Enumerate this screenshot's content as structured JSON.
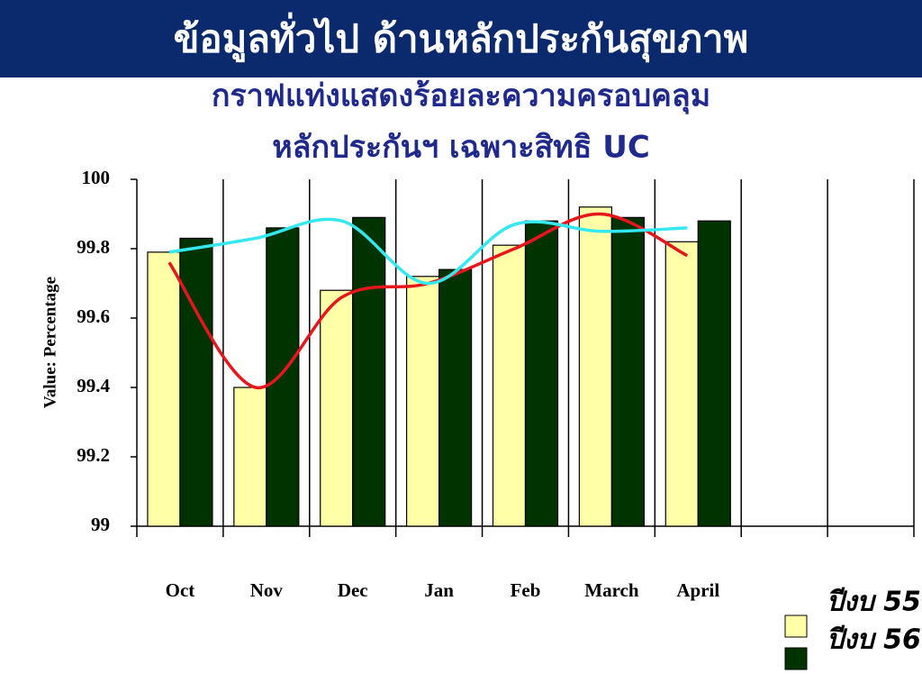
{
  "chart_data": {
    "type": "bar",
    "title": "ข้อมูลทั่วไป ด้านหลักประกันสุขภาพ",
    "subtitle": [
      "กราฟแท่งแสดงร้อยละความครอบคลุม",
      "หลักประกันฯ เฉพาะสิทธิ UC"
    ],
    "y_label": "Value: Percentage",
    "categories": [
      "Oct",
      "Nov",
      "Dec",
      "Jan",
      "Feb",
      "March",
      "April",
      null,
      null
    ],
    "series": [
      {
        "name": "ปีงบ 55",
        "color": "#ffffa8",
        "values": [
          99.79,
          99.4,
          99.68,
          99.72,
          99.81,
          99.92,
          99.82,
          null,
          null
        ]
      },
      {
        "name": "ปีงบ 56",
        "color": "#003300",
        "values": [
          99.83,
          99.86,
          99.89,
          99.74,
          99.88,
          99.89,
          99.88,
          null,
          null
        ]
      }
    ],
    "lines": [
      {
        "color": "#e8161a",
        "values": [
          99.76,
          99.4,
          99.66,
          99.7,
          99.8,
          99.9,
          99.78,
          null,
          null
        ]
      },
      {
        "color": "#33e8f0",
        "values": [
          99.79,
          99.83,
          99.88,
          99.7,
          99.87,
          99.85,
          99.86,
          null,
          null
        ]
      }
    ],
    "ylim": [
      99,
      100
    ],
    "yticks": [
      99,
      99.2,
      99.4,
      99.6,
      99.8,
      100
    ],
    "grid": true
  }
}
